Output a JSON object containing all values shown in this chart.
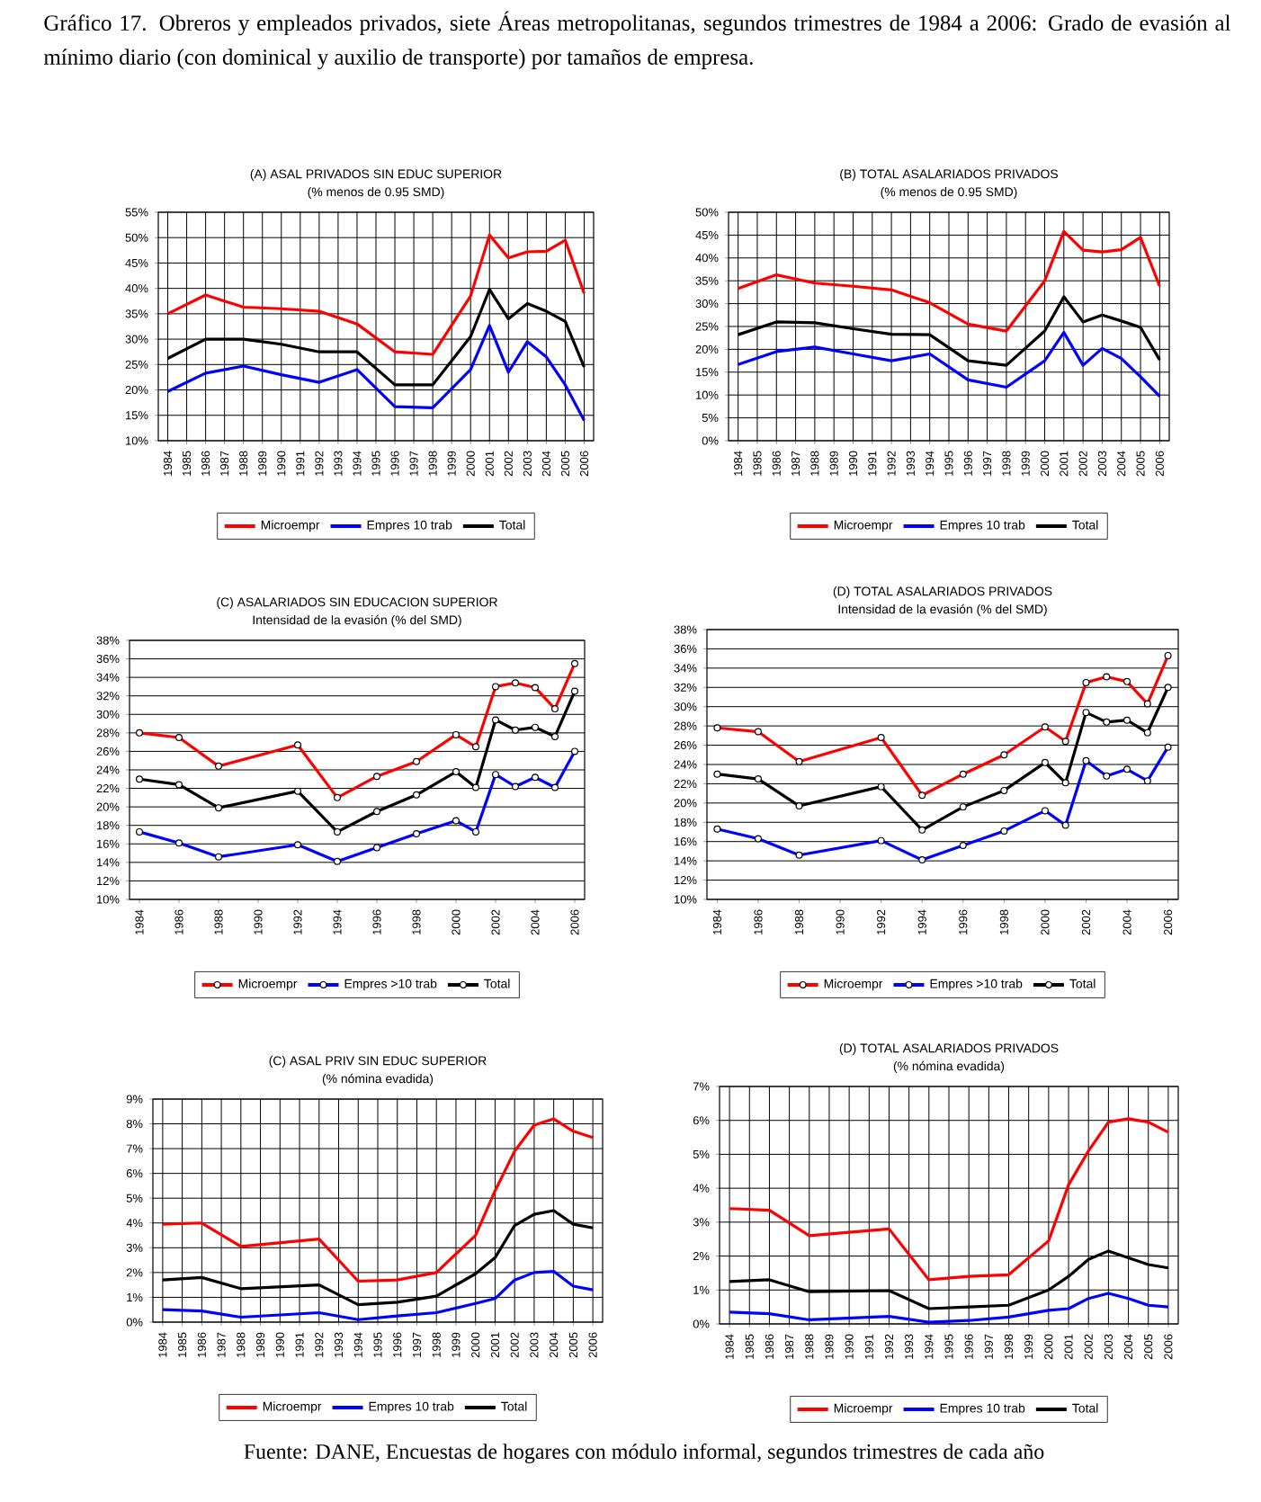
{
  "chart_data": [
    {
      "type": "line",
      "title": "(A) ASAL PRIVADOS SIN EDUC SUPERIOR",
      "subtitle": "(% menos de 0.95 SMD)",
      "annotations": [
        "Gráfico 17. Obreros y empleados privados, siete Áreas metropolitanas, segundos trimestres de 1984 a 2006: Grado de evasión al mínimo diario (con dominical y auxilio de transporte) por tamaños de empresa."
      ],
      "x": [
        1984,
        1986,
        1988,
        1990,
        1992,
        1994,
        1996,
        1998,
        2000,
        2001,
        2002,
        2003,
        2004,
        2005,
        2006
      ],
      "series": [
        {
          "name": "Microempr",
          "color": "#ff0000",
          "values": [
            35,
            38.7,
            36.3,
            36,
            35.5,
            33,
            27.5,
            27,
            38.5,
            50.5,
            46,
            47.2,
            47.3,
            49.5,
            39
          ]
        },
        {
          "name": "Empres 10 trab",
          "color": "#0000ff",
          "values": [
            19.7,
            23.3,
            24.7,
            23,
            21.5,
            24,
            16.7,
            16.5,
            24,
            32.7,
            23.5,
            29.5,
            26.5,
            21,
            14
          ]
        },
        {
          "name": "Total",
          "color": "#000000",
          "values": [
            26.2,
            30,
            30,
            29,
            27.5,
            27.5,
            21,
            21,
            30.5,
            39.8,
            34,
            37,
            35.5,
            33.5,
            24.5
          ]
        }
      ],
      "xlim": [
        1983.5,
        2006.5
      ],
      "xticks": [
        1984,
        1985,
        1986,
        1987,
        1988,
        1989,
        1990,
        1991,
        1992,
        1993,
        1994,
        1995,
        1996,
        1997,
        1998,
        1999,
        2000,
        2001,
        2002,
        2003,
        2004,
        2005,
        2006
      ],
      "ylim": [
        10,
        55
      ],
      "yticks": [
        {
          "value": 10,
          "label": "10%"
        },
        {
          "value": 15,
          "label": "15%"
        },
        {
          "value": 20,
          "label": "20%"
        },
        {
          "value": 25,
          "label": "25%"
        },
        {
          "value": 30,
          "label": "30%"
        },
        {
          "value": 35,
          "label": "35%"
        },
        {
          "value": 40,
          "label": "40%"
        },
        {
          "value": 45,
          "label": "45%"
        },
        {
          "value": 50,
          "label": "50%"
        },
        {
          "value": 55,
          "label": "55%"
        }
      ],
      "grid": true,
      "legend": "bottom"
    },
    {
      "type": "line",
      "title": "(B) TOTAL ASALARIADOS PRIVADOS",
      "subtitle": "(% menos de 0.95 SMD)",
      "x": [
        1984,
        1986,
        1988,
        1990,
        1992,
        1994,
        1996,
        1998,
        2000,
        2001,
        2002,
        2003,
        2004,
        2005,
        2006
      ],
      "series": [
        {
          "name": "Microempr",
          "color": "#ff0000",
          "values": [
            33.3,
            36.3,
            34.5,
            33.8,
            33,
            30.2,
            25.5,
            24,
            35,
            45.8,
            41.7,
            41.3,
            41.8,
            44.5,
            33.8
          ]
        },
        {
          "name": "Empres 10 trab",
          "color": "#0000ff",
          "values": [
            16.7,
            19.5,
            20.5,
            19,
            17.5,
            19,
            13.3,
            11.7,
            17.5,
            23.7,
            16.5,
            20.2,
            18,
            14,
            9.7
          ]
        },
        {
          "name": "Total",
          "color": "#000000",
          "values": [
            23.2,
            26,
            25.8,
            24.5,
            23.3,
            23.2,
            17.5,
            16.5,
            24,
            31.5,
            26,
            27.5,
            26.2,
            24.8,
            17.7
          ]
        }
      ],
      "xlim": [
        1983.5,
        2006.5
      ],
      "xticks": [
        1984,
        1985,
        1986,
        1987,
        1988,
        1989,
        1990,
        1991,
        1992,
        1993,
        1994,
        1995,
        1996,
        1997,
        1998,
        1999,
        2000,
        2001,
        2002,
        2003,
        2004,
        2005,
        2006
      ],
      "ylim": [
        0,
        50
      ],
      "yticks": [
        {
          "value": 0,
          "label": "0%"
        },
        {
          "value": 5,
          "label": "5%"
        },
        {
          "value": 10,
          "label": "10%"
        },
        {
          "value": 15,
          "label": "15%"
        },
        {
          "value": 20,
          "label": "20%"
        },
        {
          "value": 25,
          "label": "25%"
        },
        {
          "value": 30,
          "label": "30%"
        },
        {
          "value": 35,
          "label": "35%"
        },
        {
          "value": 40,
          "label": "40%"
        },
        {
          "value": 45,
          "label": "45%"
        },
        {
          "value": 50,
          "label": "50%"
        }
      ],
      "grid": true,
      "legend": "bottom"
    },
    {
      "type": "line",
      "title": "(C) ASALARIADOS SIN EDUCACION SUPERIOR",
      "subtitle": "Intensidad de la evasión (% del SMD)",
      "x": [
        1984,
        1986,
        1988,
        1992,
        1994,
        1996,
        1998,
        2000,
        2001,
        2002,
        2003,
        2004,
        2005,
        2006
      ],
      "series": [
        {
          "name": "Microempr",
          "color": "#ff0000",
          "values": [
            28.0,
            27.5,
            24.4,
            26.7,
            21.0,
            23.3,
            24.9,
            27.8,
            26.5,
            33.0,
            33.4,
            32.9,
            30.6,
            35.5
          ]
        },
        {
          "name": "Empres >10 trab",
          "color": "#0000ff",
          "values": [
            17.3,
            16.1,
            14.6,
            15.9,
            14.1,
            15.6,
            17.1,
            18.5,
            17.3,
            23.5,
            22.2,
            23.2,
            22.1,
            26.0
          ]
        },
        {
          "name": "Total",
          "color": "#000000",
          "values": [
            23.0,
            22.4,
            19.9,
            21.7,
            17.3,
            19.5,
            21.3,
            23.8,
            22.1,
            29.4,
            28.3,
            28.6,
            27.6,
            32.5
          ]
        }
      ],
      "xlim": [
        1983.5,
        2006.5
      ],
      "xticks": [
        1984,
        1986,
        1988,
        1990,
        1992,
        1994,
        1996,
        1998,
        2000,
        2002,
        2004,
        2006
      ],
      "ylim": [
        10,
        38
      ],
      "yticks": [
        {
          "value": 10,
          "label": "10%"
        },
        {
          "value": 12,
          "label": "12%"
        },
        {
          "value": 14,
          "label": "14%"
        },
        {
          "value": 16,
          "label": "16%"
        },
        {
          "value": 18,
          "label": "18%"
        },
        {
          "value": 20,
          "label": "20%"
        },
        {
          "value": 22,
          "label": "22%"
        },
        {
          "value": 24,
          "label": "24%"
        },
        {
          "value": 26,
          "label": "26%"
        },
        {
          "value": 28,
          "label": "28%"
        },
        {
          "value": 30,
          "label": "30%"
        },
        {
          "value": 32,
          "label": "32%"
        },
        {
          "value": 34,
          "label": "34%"
        },
        {
          "value": 36,
          "label": "36%"
        },
        {
          "value": 38,
          "label": "38%"
        }
      ],
      "grid": "y",
      "legend": "bottom",
      "marker": "circle"
    },
    {
      "type": "line",
      "title": "(D) TOTAL ASALARIADOS PRIVADOS",
      "subtitle": "Intensidad de la evasión (% del SMD)",
      "x": [
        1984,
        1986,
        1988,
        1992,
        1994,
        1996,
        1998,
        2000,
        2001,
        2002,
        2003,
        2004,
        2005,
        2006
      ],
      "series": [
        {
          "name": "Microempr",
          "color": "#ff0000",
          "values": [
            27.8,
            27.4,
            24.3,
            26.8,
            20.8,
            23.0,
            25.0,
            27.9,
            26.4,
            32.5,
            33.1,
            32.6,
            30.3,
            35.3
          ]
        },
        {
          "name": "Empres >10 trab",
          "color": "#0000ff",
          "values": [
            17.3,
            16.3,
            14.6,
            16.1,
            14.1,
            15.6,
            17.1,
            19.2,
            17.7,
            24.4,
            22.8,
            23.5,
            22.3,
            25.8
          ]
        },
        {
          "name": "Total",
          "color": "#000000",
          "values": [
            23.0,
            22.5,
            19.7,
            21.7,
            17.2,
            19.6,
            21.3,
            24.2,
            22.1,
            29.4,
            28.4,
            28.6,
            27.3,
            32.0
          ]
        }
      ],
      "xlim": [
        1983.5,
        2006.5
      ],
      "xticks": [
        1984,
        1986,
        1988,
        1990,
        1992,
        1994,
        1996,
        1998,
        2000,
        2002,
        2004,
        2006
      ],
      "ylim": [
        10,
        38
      ],
      "yticks": [
        {
          "value": 10,
          "label": "10%"
        },
        {
          "value": 12,
          "label": "12%"
        },
        {
          "value": 14,
          "label": "14%"
        },
        {
          "value": 16,
          "label": "16%"
        },
        {
          "value": 18,
          "label": "18%"
        },
        {
          "value": 20,
          "label": "20%"
        },
        {
          "value": 22,
          "label": "22%"
        },
        {
          "value": 24,
          "label": "24%"
        },
        {
          "value": 26,
          "label": "26%"
        },
        {
          "value": 28,
          "label": "28%"
        },
        {
          "value": 30,
          "label": "30%"
        },
        {
          "value": 32,
          "label": "32%"
        },
        {
          "value": 34,
          "label": "34%"
        },
        {
          "value": 36,
          "label": "36%"
        },
        {
          "value": 38,
          "label": "38%"
        }
      ],
      "grid": "y",
      "legend": "bottom",
      "marker": "circle"
    },
    {
      "type": "line",
      "title": "(C) ASAL PRIV SIN EDUC SUPERIOR",
      "subtitle": "(% nómina evadida)",
      "x": [
        1984,
        1986,
        1988,
        1992,
        1994,
        1996,
        1998,
        2000,
        2001,
        2002,
        2003,
        2004,
        2005,
        2006
      ],
      "series": [
        {
          "name": "Microempr",
          "color": "#ff0000",
          "values": [
            3.95,
            4.0,
            3.05,
            3.35,
            1.65,
            1.7,
            2.0,
            3.5,
            5.3,
            6.9,
            7.95,
            8.2,
            7.7,
            7.45
          ]
        },
        {
          "name": "Empres 10 trab",
          "color": "#0000ff",
          "values": [
            0.5,
            0.45,
            0.2,
            0.38,
            0.1,
            0.25,
            0.38,
            0.75,
            0.95,
            1.7,
            2.0,
            2.05,
            1.45,
            1.3
          ]
        },
        {
          "name": "Total",
          "color": "#000000",
          "values": [
            1.7,
            1.8,
            1.35,
            1.5,
            0.7,
            0.8,
            1.05,
            1.95,
            2.6,
            3.9,
            4.35,
            4.5,
            3.95,
            3.8
          ]
        }
      ],
      "xlim": [
        1983.5,
        2006.5
      ],
      "xticks": [
        1984,
        1985,
        1986,
        1987,
        1988,
        1989,
        1990,
        1991,
        1992,
        1993,
        1994,
        1995,
        1996,
        1997,
        1998,
        1999,
        2000,
        2001,
        2002,
        2003,
        2004,
        2005,
        2006
      ],
      "ylim": [
        0,
        9
      ],
      "yticks": [
        {
          "value": 0,
          "label": "0%"
        },
        {
          "value": 1,
          "label": "1%"
        },
        {
          "value": 2,
          "label": "2%"
        },
        {
          "value": 3,
          "label": "3%"
        },
        {
          "value": 4,
          "label": "4%"
        },
        {
          "value": 5,
          "label": "5%"
        },
        {
          "value": 6,
          "label": "6%"
        },
        {
          "value": 7,
          "label": "7%"
        },
        {
          "value": 8,
          "label": "8%"
        },
        {
          "value": 9,
          "label": "9%"
        }
      ],
      "grid": true,
      "legend": "bottom"
    },
    {
      "type": "line",
      "title": "(D) TOTAL ASALARIADOS PRIVADOS",
      "subtitle": "(% nómina evadida)",
      "annotations": [
        "Fuente: DANE, Encuestas de hogares con módulo informal, segundos trimestres de cada año"
      ],
      "x": [
        1984,
        1986,
        1988,
        1992,
        1994,
        1996,
        1998,
        2000,
        2001,
        2002,
        2003,
        2004,
        2005,
        2006
      ],
      "series": [
        {
          "name": "Microempr",
          "color": "#ff0000",
          "values": [
            3.4,
            3.35,
            2.6,
            2.8,
            1.3,
            1.4,
            1.45,
            2.45,
            4.1,
            5.1,
            5.95,
            6.05,
            5.95,
            5.65
          ]
        },
        {
          "name": "Empres 10 trab",
          "color": "#0000ff",
          "values": [
            0.35,
            0.3,
            0.12,
            0.22,
            0.05,
            0.1,
            0.2,
            0.4,
            0.45,
            0.75,
            0.9,
            0.75,
            0.55,
            0.5
          ]
        },
        {
          "name": "Total",
          "color": "#000000",
          "values": [
            1.25,
            1.3,
            0.95,
            0.98,
            0.45,
            0.5,
            0.55,
            1.0,
            1.4,
            1.9,
            2.15,
            1.95,
            1.75,
            1.65
          ]
        }
      ],
      "xlim": [
        1983.5,
        2006.5
      ],
      "xticks": [
        1984,
        1985,
        1986,
        1987,
        1988,
        1989,
        1990,
        1991,
        1992,
        1993,
        1994,
        1995,
        1996,
        1997,
        1998,
        1999,
        2000,
        2001,
        2002,
        2003,
        2004,
        2005,
        2006
      ],
      "ylim": [
        0,
        7
      ],
      "yticks": [
        {
          "value": 0,
          "label": "0%"
        },
        {
          "value": 1,
          "label": "1%"
        },
        {
          "value": 2,
          "label": "2%"
        },
        {
          "value": 3,
          "label": "3%"
        },
        {
          "value": 4,
          "label": "4%"
        },
        {
          "value": 5,
          "label": "5%"
        },
        {
          "value": 6,
          "label": "6%"
        },
        {
          "value": 7,
          "label": "7%"
        }
      ],
      "grid": true,
      "legend": "bottom"
    }
  ]
}
